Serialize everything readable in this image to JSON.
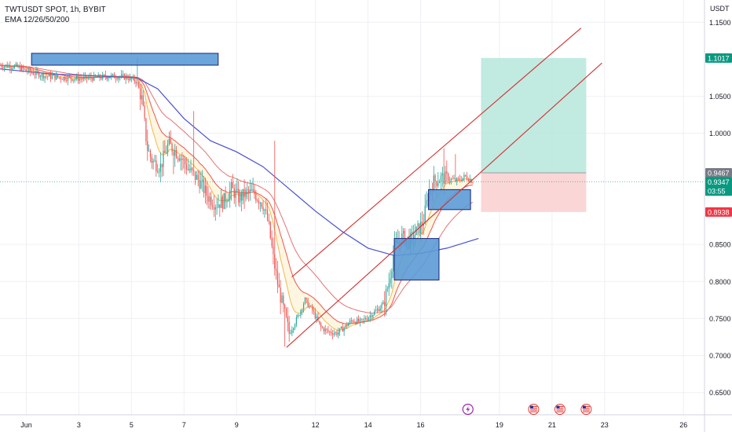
{
  "header": {
    "symbol_line": "TWTUSDT SPOT, 1h, BYBIT",
    "indicator_line": "EMA 12/26/50/200"
  },
  "colors": {
    "candle_up": "#26a69a",
    "candle_down": "#ef5350",
    "ema_fast": "#f2b84a",
    "ema_mid": "#ef5350",
    "ema_slow": "#4a4fd1",
    "channel": "#d32f2f",
    "zone_fill": "#5b9bd5",
    "zone_stroke": "#1a237e",
    "target_fill": "#b6e6dc",
    "stop_fill": "#fbd2d2",
    "grid": "#eef0f3"
  },
  "chart_data": {
    "type": "candlestick",
    "title": "TWTUSDT SPOT, 1h, BYBIT",
    "y_axis_label": "USDT",
    "ylim": [
      0.62,
      1.18
    ],
    "xlim": [
      0.0,
      26.8
    ],
    "y_ticks": [
      "1.1500",
      "1.0500",
      "1.0000",
      "0.8500",
      "0.8000",
      "0.7500",
      "0.7000",
      "0.6500"
    ],
    "x_ticks": [
      {
        "label": "Jun",
        "x": 1
      },
      {
        "label": "3",
        "x": 3
      },
      {
        "label": "5",
        "x": 5
      },
      {
        "label": "7",
        "x": 7
      },
      {
        "label": "9",
        "x": 9
      },
      {
        "label": "12",
        "x": 12
      },
      {
        "label": "14",
        "x": 14
      },
      {
        "label": "16",
        "x": 16
      },
      {
        "label": "19",
        "x": 19
      },
      {
        "label": "21",
        "x": 21
      },
      {
        "label": "23",
        "x": 23
      },
      {
        "label": "26",
        "x": 26
      }
    ],
    "price_labels": [
      {
        "text": "1.1017",
        "value": 1.1017,
        "color": "#089981"
      },
      {
        "text": "0.9467",
        "value": 0.9467,
        "color": "#787b86"
      },
      {
        "text": "0.9347",
        "value": 0.9347,
        "color": "#089981",
        "sub": "03:55"
      },
      {
        "text": "0.8938",
        "value": 0.8938,
        "color": "#f23645"
      }
    ],
    "close_path": [
      [
        0.0,
        1.092
      ],
      [
        0.6,
        1.09
      ],
      [
        1.2,
        1.082
      ],
      [
        1.8,
        1.077
      ],
      [
        2.4,
        1.075
      ],
      [
        3.0,
        1.074
      ],
      [
        3.6,
        1.075
      ],
      [
        4.2,
        1.077
      ],
      [
        4.8,
        1.076
      ],
      [
        5.2,
        1.07
      ],
      [
        5.4,
        1.045
      ],
      [
        5.6,
        0.98
      ],
      [
        5.8,
        0.962
      ],
      [
        6.1,
        0.955
      ],
      [
        6.4,
        0.985
      ],
      [
        6.8,
        0.972
      ],
      [
        7.2,
        0.95
      ],
      [
        7.6,
        0.935
      ],
      [
        7.9,
        0.915
      ],
      [
        8.2,
        0.905
      ],
      [
        8.5,
        0.908
      ],
      [
        8.8,
        0.925
      ],
      [
        9.1,
        0.912
      ],
      [
        9.4,
        0.92
      ],
      [
        9.7,
        0.918
      ],
      [
        10.0,
        0.905
      ],
      [
        10.2,
        0.88
      ],
      [
        10.4,
        0.83
      ],
      [
        10.6,
        0.79
      ],
      [
        10.8,
        0.76
      ],
      [
        11.0,
        0.73
      ],
      [
        11.3,
        0.75
      ],
      [
        11.6,
        0.775
      ],
      [
        11.9,
        0.76
      ],
      [
        12.2,
        0.738
      ],
      [
        12.5,
        0.732
      ],
      [
        12.8,
        0.73
      ],
      [
        13.1,
        0.738
      ],
      [
        13.4,
        0.748
      ],
      [
        13.7,
        0.745
      ],
      [
        14.0,
        0.752
      ],
      [
        14.3,
        0.76
      ],
      [
        14.6,
        0.77
      ],
      [
        14.8,
        0.8
      ],
      [
        15.0,
        0.845
      ],
      [
        15.3,
        0.86
      ],
      [
        15.6,
        0.855
      ],
      [
        15.9,
        0.87
      ],
      [
        16.1,
        0.88
      ],
      [
        16.3,
        0.92
      ],
      [
        16.5,
        0.935
      ],
      [
        16.8,
        0.94
      ],
      [
        17.1,
        0.938
      ],
      [
        17.4,
        0.936
      ],
      [
        17.7,
        0.942
      ],
      [
        18.0,
        0.9347
      ]
    ],
    "ema_200_path": [
      [
        0.0,
        1.087
      ],
      [
        2.0,
        1.08
      ],
      [
        4.0,
        1.077
      ],
      [
        5.2,
        1.075
      ],
      [
        6.0,
        1.06
      ],
      [
        7.0,
        1.02
      ],
      [
        8.0,
        0.99
      ],
      [
        9.0,
        0.975
      ],
      [
        10.0,
        0.955
      ],
      [
        11.0,
        0.925
      ],
      [
        12.0,
        0.895
      ],
      [
        13.0,
        0.868
      ],
      [
        14.0,
        0.845
      ],
      [
        15.0,
        0.835
      ],
      [
        16.0,
        0.838
      ],
      [
        17.0,
        0.845
      ],
      [
        18.2,
        0.858
      ]
    ],
    "drawings": {
      "resistance_zone": {
        "x0": 1.2,
        "x1": 8.3,
        "y_top": 1.108,
        "y_bottom": 1.092
      },
      "demand_zone": {
        "x0": 15.0,
        "x1": 16.7,
        "y_top": 0.858,
        "y_bottom": 0.802
      },
      "entry_zone": {
        "x0": 16.3,
        "x1": 17.9,
        "y_top": 0.924,
        "y_bottom": 0.897
      },
      "channel_line_upper": {
        "x0": 11.1,
        "y0": 0.806,
        "x1": 22.1,
        "y1": 1.142
      },
      "channel_line_lower": {
        "x0": 10.9,
        "y0": 0.711,
        "x1": 22.9,
        "y1": 1.095
      },
      "long_position": {
        "x0": 18.3,
        "x1": 22.3,
        "target": 1.1017,
        "entry": 0.9467,
        "stop": 0.8938
      }
    },
    "event_markers": [
      {
        "x": 17.8,
        "icon": "lightning-icon"
      },
      {
        "x": 20.3,
        "icon": "us-flag-icon"
      },
      {
        "x": 21.3,
        "icon": "us-flag-icon"
      },
      {
        "x": 22.3,
        "icon": "us-flag-icon"
      }
    ]
  }
}
